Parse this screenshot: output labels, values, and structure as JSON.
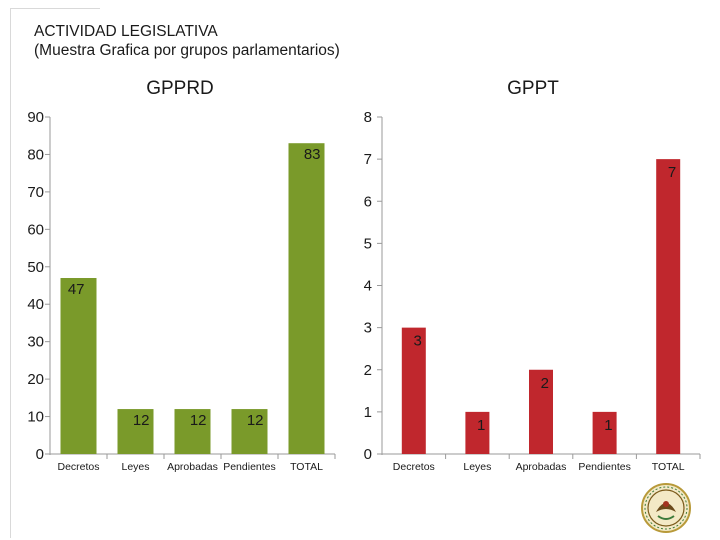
{
  "header": {
    "title_line1": "ACTIVIDAD LEGISLATIVA",
    "title_line2": "(Muestra Grafica por grupos parlamentarios)"
  },
  "chart_data": [
    {
      "type": "bar",
      "title": "GPPRD",
      "categories": [
        "Decretos",
        "Leyes",
        "Aprobadas",
        "Pendientes",
        "TOTAL"
      ],
      "values": [
        47,
        12,
        12,
        12,
        83
      ],
      "ylim": [
        0,
        90
      ],
      "yticks": [
        0,
        10,
        20,
        30,
        40,
        50,
        60,
        70,
        80,
        90
      ],
      "color": "#7a9a2a",
      "grid": false,
      "xlabel": "",
      "ylabel": ""
    },
    {
      "type": "bar",
      "title": "GPPT",
      "categories": [
        "Decretos",
        "Leyes",
        "Aprobadas",
        "Pendientes",
        "TOTAL"
      ],
      "values": [
        3,
        1,
        2,
        1,
        7
      ],
      "ylim": [
        0,
        8
      ],
      "yticks": [
        0,
        1,
        2,
        3,
        4,
        5,
        6,
        7,
        8
      ],
      "color": "#c0272d",
      "grid": false,
      "xlabel": "",
      "ylabel": ""
    }
  ],
  "logo": {
    "icon": "seal-icon"
  }
}
